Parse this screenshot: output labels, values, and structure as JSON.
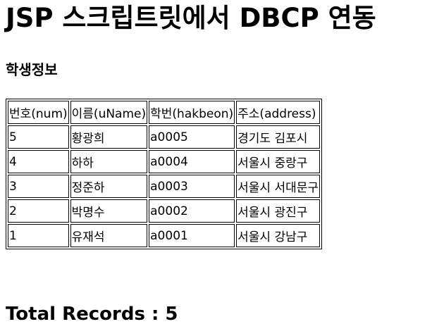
{
  "page": {
    "title": "JSP 스크립트릿에서 DBCP 연동",
    "section_title": "학생정보",
    "total_label": "Total Records : 5"
  },
  "table": {
    "headers": [
      "번호(num)",
      "이름(uName)",
      "학번(hakbeon)",
      "주소(address)"
    ],
    "rows": [
      [
        "5",
        "황광희",
        "a0005",
        "경기도 김포시"
      ],
      [
        "4",
        "하하",
        "a0004",
        "서울시 중랑구"
      ],
      [
        "3",
        "정준하",
        "a0003",
        "서울시 서대문구"
      ],
      [
        "2",
        "박명수",
        "a0002",
        "서울시 광진구"
      ],
      [
        "1",
        "유재석",
        "a0001",
        "서울시 강남구"
      ]
    ]
  }
}
